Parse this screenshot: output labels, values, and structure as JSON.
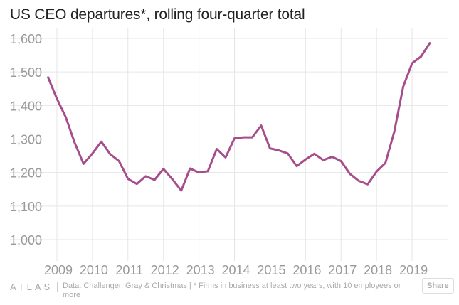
{
  "chart_data": {
    "type": "line",
    "title": "US CEO departures*, rolling four-quarter total",
    "xlabel": "",
    "ylabel": "",
    "ylim": [
      1000,
      1600
    ],
    "yticks": [
      1000,
      1100,
      1200,
      1300,
      1400,
      1500,
      1600
    ],
    "ytick_labels": [
      "1,000",
      "1,100",
      "1,200",
      "1,300",
      "1,400",
      "1,500",
      "1,600"
    ],
    "xlim": [
      2008.6,
      2020.0
    ],
    "xticks": [
      2009,
      2010,
      2011,
      2012,
      2013,
      2014,
      2015,
      2016,
      2017,
      2018,
      2019
    ],
    "xtick_labels": [
      "2009",
      "2010",
      "2011",
      "2012",
      "2013",
      "2014",
      "2015",
      "2016",
      "2017",
      "2018",
      "2019"
    ],
    "grid": true,
    "legend": "none",
    "line_color": "#a64d8c",
    "series": [
      {
        "x": [
          2008.75,
          2009.0,
          2009.25,
          2009.5,
          2009.75,
          2010.0,
          2010.25,
          2010.5,
          2010.75,
          2011.0,
          2011.25,
          2011.5,
          2011.75,
          2012.0,
          2012.25,
          2012.5,
          2012.75,
          2013.0,
          2013.25,
          2013.5,
          2013.75,
          2014.0,
          2014.25,
          2014.5,
          2014.75,
          2015.0,
          2015.25,
          2015.5,
          2015.75,
          2016.0,
          2016.25,
          2016.5,
          2016.75,
          2017.0,
          2017.25,
          2017.5,
          2017.75,
          2018.0,
          2018.25,
          2018.5,
          2018.75,
          2019.0,
          2019.25,
          2019.5
        ],
        "values": [
          1484,
          1420,
          1365,
          1289,
          1226,
          1257,
          1292,
          1255,
          1234,
          1181,
          1166,
          1189,
          1178,
          1211,
          1180,
          1146,
          1212,
          1200,
          1204,
          1270,
          1245,
          1302,
          1305,
          1305,
          1340,
          1272,
          1266,
          1257,
          1219,
          1239,
          1256,
          1237,
          1247,
          1234,
          1196,
          1175,
          1165,
          1203,
          1229,
          1322,
          1456,
          1526,
          1546,
          1586
        ]
      }
    ]
  },
  "footer": {
    "logo": "ATLAS",
    "source": "Data:  Challenger, Gray & Christmas | * Firms in business at least two years, with 10 employees or more",
    "share_label": "Share"
  }
}
